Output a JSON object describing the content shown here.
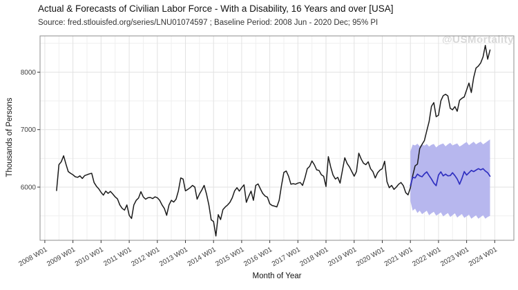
{
  "header": {
    "title": "Actual & Forecasts of Civilian Labor Force - With a Disability, 16 Years and over [USA]",
    "subtitle": "Source: fred.stlouisfed.org/series/LNU01074597 ; Baseline Period: 2008 Jun - 2020 Dec; 95% PI"
  },
  "watermark": "@USMortality",
  "chart_data": {
    "type": "line",
    "title": "Actual & Forecasts of Civilian Labor Force - With a Disability, 16 Years and over [USA]",
    "subtitle": "Source: fred.stlouisfed.org/series/LNU01074597 ; Baseline Period: 2008 Jun - 2020 Dec; 95% PI",
    "xlabel": "Month of Year",
    "ylabel": "Thousands of Persons",
    "xlim": [
      2007.83,
      2024.68
    ],
    "ylim": [
      5075,
      8630
    ],
    "grid": true,
    "legend": "none",
    "colors": {
      "actual": "#1a1a1a",
      "forecast": "#2f2fc0",
      "band": "#b7b7ee",
      "grid_major": "#e2e2e2",
      "grid_minor": "#efefef",
      "panel_border": "#8c8c8c",
      "tick": "#333333",
      "tick_label": "#404040"
    },
    "x_ticks": [
      {
        "value": 2008,
        "label": "2008 W01"
      },
      {
        "value": 2009,
        "label": "2009 W01"
      },
      {
        "value": 2010,
        "label": "2010 W01"
      },
      {
        "value": 2011,
        "label": "2011 W01"
      },
      {
        "value": 2012,
        "label": "2012 W01"
      },
      {
        "value": 2013,
        "label": "2013 W01"
      },
      {
        "value": 2014,
        "label": "2014 W01"
      },
      {
        "value": 2015,
        "label": "2015 W01"
      },
      {
        "value": 2016,
        "label": "2016 W01"
      },
      {
        "value": 2017,
        "label": "2017 W01"
      },
      {
        "value": 2018,
        "label": "2018 W01"
      },
      {
        "value": 2019,
        "label": "2019 W01"
      },
      {
        "value": 2020,
        "label": "2020 W01"
      },
      {
        "value": 2021,
        "label": "2021 W01"
      },
      {
        "value": 2022,
        "label": "2022 W01"
      },
      {
        "value": 2023,
        "label": "2023 W01"
      },
      {
        "value": 2024,
        "label": "2024 W01"
      }
    ],
    "y_ticks": [
      6000,
      7000,
      8000
    ],
    "y_minor": [
      5500,
      6500,
      7500,
      8500
    ],
    "series": [
      {
        "name": "actual",
        "color": "#1a1a1a",
        "width": 1.5,
        "start": 2008.4167,
        "step_years": 0.083333,
        "values": [
          5940,
          6390,
          6440,
          6545,
          6400,
          6270,
          6240,
          6215,
          6180,
          6170,
          6195,
          6150,
          6200,
          6215,
          6230,
          6240,
          6080,
          6015,
          5970,
          5910,
          5860,
          5930,
          5890,
          5925,
          5880,
          5830,
          5795,
          5690,
          5630,
          5600,
          5690,
          5510,
          5455,
          5690,
          5770,
          5810,
          5920,
          5830,
          5790,
          5815,
          5820,
          5800,
          5830,
          5815,
          5770,
          5690,
          5630,
          5510,
          5690,
          5770,
          5740,
          5790,
          5935,
          6160,
          6140,
          5935,
          5960,
          5990,
          6030,
          6000,
          5790,
          5880,
          5950,
          6030,
          5880,
          5690,
          5430,
          5400,
          5150,
          5520,
          5435,
          5610,
          5655,
          5690,
          5735,
          5815,
          5935,
          5990,
          5930,
          5990,
          6040,
          5735,
          5840,
          5930,
          5770,
          6030,
          6055,
          5970,
          5890,
          5845,
          5825,
          5710,
          5680,
          5670,
          5655,
          5770,
          6030,
          6255,
          6280,
          6190,
          6050,
          6060,
          6050,
          6070,
          6080,
          6030,
          6160,
          6320,
          6360,
          6455,
          6390,
          6300,
          6290,
          6215,
          6190,
          6010,
          6530,
          6350,
          6210,
          6140,
          6170,
          6070,
          6290,
          6510,
          6410,
          6350,
          6270,
          6190,
          6270,
          6590,
          6490,
          6415,
          6390,
          6440,
          6320,
          6270,
          6160,
          6250,
          6295,
          6320,
          6450,
          6095,
          5990,
          6030,
          5960,
          6000,
          6050,
          6080,
          6025,
          5905,
          5865,
          5990,
          6200,
          6370,
          6400,
          6670,
          6745,
          6810,
          6980,
          7140,
          7405,
          7470,
          7225,
          7250,
          7500,
          7590,
          7615,
          7585,
          7370,
          7345,
          7400,
          7320,
          7510,
          7545,
          7570,
          7690,
          7810,
          7645,
          7905,
          8070,
          8105,
          8160,
          8265,
          8465,
          8225,
          8385
        ]
      },
      {
        "name": "forecast",
        "color": "#2f2fc0",
        "width": 1.7,
        "start": 2021.0,
        "step_years": 0.083333,
        "values": [
          6025,
          6170,
          6160,
          6225,
          6195,
          6180,
          6230,
          6265,
          6200,
          6140,
          6070,
          6025,
          6210,
          6265,
          6195,
          6225,
          6195,
          6200,
          6250,
          6200,
          6140,
          6050,
          6150,
          6270,
          6210,
          6250,
          6290,
          6270,
          6295,
          6320,
          6300,
          6320,
          6280,
          6250,
          6190
        ]
      }
    ],
    "band": {
      "name": "95% PI",
      "color": "#b7b7ee",
      "start": 2021.0,
      "step_years": 0.083333,
      "hi": [
        6620,
        6740,
        6725,
        6755,
        6710,
        6745,
        6720,
        6750,
        6705,
        6735,
        6750,
        6690,
        6725,
        6745,
        6760,
        6710,
        6745,
        6770,
        6725,
        6745,
        6760,
        6705,
        6730,
        6760,
        6785,
        6730,
        6760,
        6790,
        6745,
        6770,
        6790,
        6745,
        6770,
        6800,
        6830
      ],
      "lo": [
        5760,
        5590,
        5625,
        5550,
        5590,
        5530,
        5560,
        5590,
        5510,
        5545,
        5570,
        5505,
        5530,
        5560,
        5490,
        5520,
        5550,
        5480,
        5510,
        5545,
        5470,
        5505,
        5530,
        5465,
        5490,
        5520,
        5450,
        5480,
        5510,
        5450,
        5480,
        5510,
        5450,
        5480,
        5500
      ]
    }
  }
}
